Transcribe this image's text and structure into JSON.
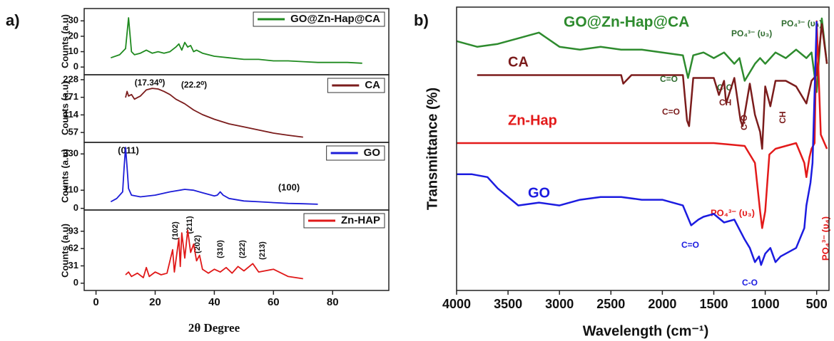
{
  "chart_data": [
    {
      "type": "line",
      "panel_label": "a)",
      "ylabel": "Counts (a.u)",
      "legend": "upper right",
      "xlim": [
        -4,
        99
      ],
      "ylim": [
        -5,
        38
      ],
      "yticks": [
        0,
        10,
        20,
        30
      ],
      "series": [
        {
          "name": "GO@Zn-Hap@CA",
          "color": "#1f8a1f",
          "x": [
            5,
            8,
            10,
            11,
            12,
            13,
            15,
            17,
            19,
            21,
            23,
            25,
            27,
            28,
            29,
            30,
            31,
            32,
            33,
            34,
            36,
            38,
            40,
            45,
            50,
            55,
            60,
            65,
            70,
            75,
            80,
            85,
            90
          ],
          "values": [
            6,
            8,
            12,
            32,
            10,
            8,
            9,
            11,
            9,
            10,
            9,
            10,
            13,
            15,
            11,
            16,
            13,
            14,
            10,
            11,
            9,
            8,
            7,
            6,
            5,
            5,
            4,
            4,
            3.5,
            3,
            3,
            3,
            2.5
          ]
        }
      ]
    },
    {
      "type": "line",
      "ylabel": "Counts (a.u)",
      "legend": "upper right",
      "xlim": [
        -4,
        99
      ],
      "ylim": [
        25,
        244
      ],
      "yticks": [
        57,
        114,
        171,
        228
      ],
      "annotations": [
        "(17.34⁰)",
        "(22.2⁰)"
      ],
      "series": [
        {
          "name": "CA",
          "color": "#7b1c1c",
          "x": [
            10,
            10.5,
            11,
            12,
            13,
            14,
            15,
            17,
            19,
            21,
            23,
            25,
            27,
            30,
            33,
            36,
            40,
            45,
            50,
            55,
            60,
            65,
            70
          ],
          "values": [
            170,
            190,
            175,
            180,
            165,
            170,
            175,
            195,
            200,
            198,
            190,
            180,
            165,
            150,
            130,
            115,
            100,
            85,
            75,
            65,
            55,
            48,
            42
          ]
        }
      ]
    },
    {
      "type": "line",
      "ylabel": "Counts (a.u)",
      "legend": "upper right",
      "xlim": [
        -4,
        99
      ],
      "ylim": [
        -10,
        400
      ],
      "yticks": [
        0,
        110,
        330
      ],
      "annotations": [
        "(011)",
        "(100)"
      ],
      "series": [
        {
          "name": "GO",
          "color": "#1c1cd8",
          "x": [
            5,
            7,
            9,
            9.5,
            10,
            10.5,
            11,
            12,
            15,
            20,
            25,
            30,
            33,
            36,
            40,
            41,
            42,
            43,
            45,
            50,
            55,
            60,
            65,
            70,
            75
          ],
          "values": [
            40,
            60,
            100,
            250,
            370,
            250,
            120,
            80,
            70,
            80,
            100,
            115,
            110,
            95,
            75,
            80,
            100,
            80,
            60,
            45,
            40,
            35,
            30,
            28,
            25
          ]
        }
      ]
    },
    {
      "type": "line",
      "ylabel": "Counts (a.u)",
      "legend": "upper right",
      "xlabel": "2θ Degree",
      "xlim": [
        -4,
        99
      ],
      "ylim": [
        -13,
        131
      ],
      "yticks": [
        0,
        31,
        62,
        93
      ],
      "xticks": [
        0,
        20,
        40,
        60,
        80
      ],
      "annotations": [
        "(102)",
        "(211)",
        "(202)",
        "(310)",
        "(222)",
        "(213)"
      ],
      "series": [
        {
          "name": "Zn-HAP",
          "color": "#e01818",
          "x": [
            10,
            11,
            12,
            14,
            16,
            17,
            18,
            20,
            22,
            24,
            25.9,
            26.5,
            28,
            28.5,
            29,
            30,
            31,
            32,
            33,
            34,
            35,
            36,
            38,
            40,
            42,
            44,
            46,
            48,
            50,
            53,
            55,
            60,
            65,
            70
          ],
          "values": [
            15,
            20,
            12,
            18,
            10,
            28,
            12,
            20,
            15,
            18,
            60,
            20,
            80,
            30,
            90,
            45,
            95,
            55,
            70,
            40,
            50,
            25,
            18,
            25,
            20,
            28,
            18,
            30,
            22,
            35,
            20,
            25,
            12,
            8
          ]
        }
      ]
    },
    {
      "type": "line",
      "panel_label": "b)",
      "ylabel": "Transmittance (%)",
      "xlabel": "Wavelength (cm⁻¹)",
      "xlim": [
        4000,
        380
      ],
      "ylim": [
        0,
        100
      ],
      "xticks": [
        4000,
        3500,
        3000,
        2500,
        2000,
        1500,
        1000,
        500
      ],
      "annotations": [
        "C=O",
        "C-O",
        "PO₄³⁻ (υ₃)",
        "PO₄³⁻ (υ₄)",
        "C=O",
        "CH",
        "C-O",
        "CH",
        "PO₄³⁻ (υ₃)",
        "PO₄³⁻ (υ₄)",
        "C=O",
        "C-O"
      ],
      "series": [
        {
          "name": "GO@Zn-Hap@CA",
          "color": "#2e8b2e",
          "x": [
            4000,
            3800,
            3600,
            3400,
            3200,
            3000,
            2800,
            2600,
            2400,
            2200,
            2000,
            1800,
            1750,
            1700,
            1600,
            1500,
            1400,
            1300,
            1250,
            1200,
            1100,
            1050,
            1000,
            900,
            800,
            700,
            600,
            550,
            500,
            450,
            400
          ],
          "values": [
            88,
            86,
            87,
            89,
            91,
            86,
            85,
            86,
            85,
            85,
            84,
            83,
            75,
            83,
            84,
            82,
            84,
            80,
            82,
            74,
            80,
            82,
            80,
            84,
            82,
            85,
            82,
            84,
            70,
            96,
            80
          ]
        },
        {
          "name": "CA",
          "color": "#7b1c1c",
          "x": [
            3800,
            3600,
            3400,
            3200,
            3000,
            2800,
            2600,
            2400,
            2380,
            2300,
            2000,
            1800,
            1760,
            1740,
            1700,
            1600,
            1500,
            1450,
            1400,
            1380,
            1300,
            1240,
            1220,
            1150,
            1100,
            1050,
            1030,
            1000,
            950,
            900,
            800,
            700,
            600,
            550,
            500,
            450,
            400
          ],
          "values": [
            76,
            76,
            76,
            76,
            76,
            76,
            76,
            76,
            73,
            76,
            76,
            76,
            60,
            58,
            75,
            75,
            75,
            69,
            74,
            66,
            75,
            60,
            58,
            73,
            62,
            56,
            50,
            72,
            65,
            74,
            74,
            72,
            66,
            74,
            76,
            94,
            80
          ]
        },
        {
          "name": "Zn-Hap",
          "color": "#e31a1a",
          "x": [
            4000,
            3500,
            3000,
            2500,
            2000,
            1500,
            1200,
            1100,
            1050,
            1030,
            1000,
            960,
            900,
            800,
            700,
            620,
            600,
            570,
            550,
            520,
            500,
            460,
            400
          ],
          "values": [
            52,
            52,
            52,
            52,
            52,
            52,
            51,
            45,
            28,
            22,
            28,
            48,
            50,
            51,
            52,
            45,
            40,
            47,
            50,
            52,
            95,
            55,
            50
          ]
        },
        {
          "name": "GO",
          "color": "#1c1ce0",
          "x": [
            4000,
            3850,
            3700,
            3600,
            3500,
            3400,
            3200,
            3000,
            2800,
            2600,
            2400,
            2200,
            2000,
            1800,
            1720,
            1650,
            1600,
            1500,
            1400,
            1300,
            1200,
            1150,
            1100,
            1060,
            1040,
            1000,
            950,
            900,
            850,
            700,
            620,
            600,
            560,
            540,
            520,
            500
          ],
          "values": [
            41,
            41,
            40,
            36,
            33,
            30,
            31,
            30,
            32,
            33,
            33,
            32,
            32,
            30,
            23,
            25,
            26,
            27,
            24,
            25,
            18,
            15,
            10,
            12,
            9,
            13,
            15,
            10,
            12,
            15,
            22,
            30,
            38,
            45,
            70,
            95
          ]
        }
      ]
    }
  ]
}
